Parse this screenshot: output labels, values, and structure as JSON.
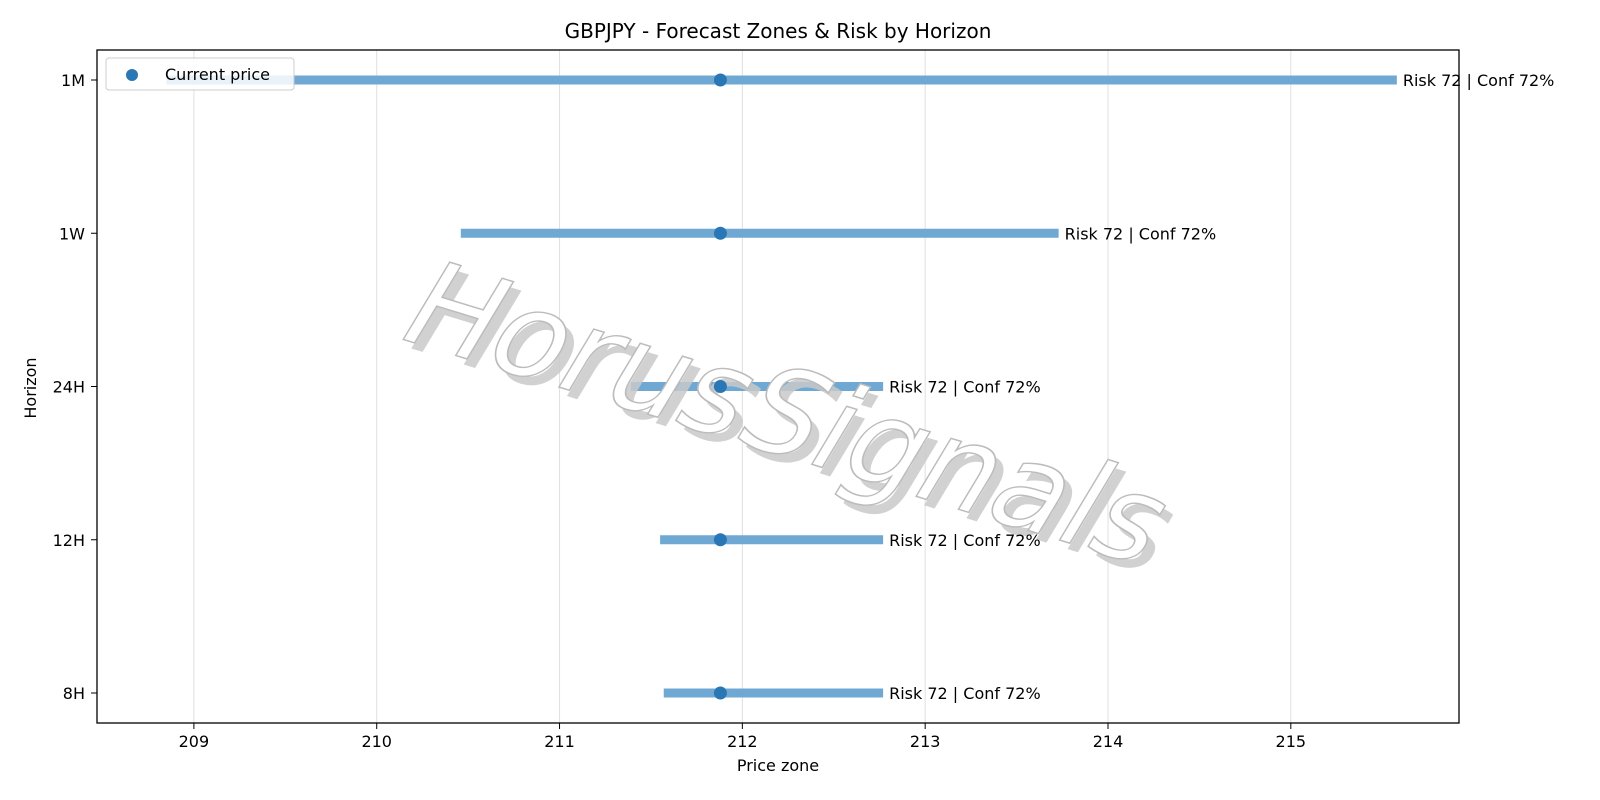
{
  "chart_data": {
    "type": "range",
    "title": "GBPJPY - Forecast Zones & Risk by Horizon",
    "xlabel": "Price zone",
    "ylabel": "Horizon",
    "xlim": [
      208.47,
      215.92
    ],
    "x_ticks": [
      209,
      210,
      211,
      212,
      213,
      214,
      215
    ],
    "categories": [
      "1M",
      "1W",
      "24H",
      "12H",
      "8H"
    ],
    "current_price": 211.88,
    "series": [
      {
        "values": [
          {
            "horizon": "1M",
            "low": 208.85,
            "high": 215.58,
            "label": "Risk 72 | Conf 72%"
          },
          {
            "horizon": "1W",
            "low": 210.46,
            "high": 213.73,
            "label": "Risk 72 | Conf 72%"
          },
          {
            "horizon": "24H",
            "low": 211.39,
            "high": 212.77,
            "label": "Risk 72 | Conf 72%"
          },
          {
            "horizon": "12H",
            "low": 211.55,
            "high": 212.77,
            "label": "Risk 72 | Conf 72%"
          },
          {
            "horizon": "8H",
            "low": 211.57,
            "high": 212.77,
            "label": "Risk 72 | Conf 72%"
          }
        ]
      }
    ],
    "legend": {
      "entries": [
        "Current price"
      ],
      "position": "top-left"
    },
    "grid": {
      "x": true,
      "y": false
    },
    "colors": {
      "bar": "#6fa8d3",
      "point": "#2a77b5",
      "grid": "#e0e0e0"
    },
    "watermark": "HorusSignals"
  }
}
